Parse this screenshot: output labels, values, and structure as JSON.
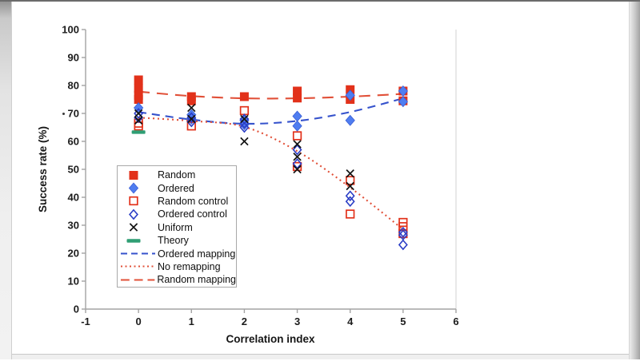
{
  "chart_data": {
    "type": "scatter",
    "title": "",
    "xlabel": "Correlation index",
    "ylabel": "Success rate (%)",
    "xlim": [
      -1,
      6
    ],
    "ylim": [
      0,
      100
    ],
    "x_ticks": [
      -1,
      0,
      1,
      2,
      3,
      4,
      5,
      6
    ],
    "y_ticks": [
      0,
      10,
      20,
      30,
      40,
      50,
      60,
      70,
      80,
      90,
      100
    ],
    "grid": false,
    "legend_position": "inside-left",
    "axis_color": "#a3a3a3",
    "right_border_color": "#d8d8d8",
    "series": [
      {
        "name": "Random",
        "slug": "random",
        "type": "scatter",
        "marker": "filled-square",
        "color": "#e2311a",
        "points": [
          [
            0,
            82
          ],
          [
            0,
            79
          ],
          [
            0,
            76.5
          ],
          [
            0,
            75
          ],
          [
            1,
            76
          ],
          [
            1,
            74.5
          ],
          [
            2,
            76
          ],
          [
            3,
            78
          ],
          [
            3,
            75.5
          ],
          [
            4,
            78.5
          ],
          [
            4,
            75
          ],
          [
            5,
            78
          ],
          [
            5,
            74.5
          ]
        ]
      },
      {
        "name": "Ordered",
        "slug": "ordered",
        "type": "scatter",
        "marker": "filled-diamond",
        "color": "#4f7df0",
        "points": [
          [
            0,
            72
          ],
          [
            1,
            69.5
          ],
          [
            1,
            68
          ],
          [
            2,
            67.5
          ],
          [
            2,
            66
          ],
          [
            3,
            69
          ],
          [
            3,
            65.5
          ],
          [
            4,
            76.5
          ],
          [
            4,
            67.5
          ],
          [
            5,
            78
          ],
          [
            5,
            74.2
          ]
        ]
      },
      {
        "name": "Random control",
        "slug": "random-control",
        "type": "scatter",
        "marker": "open-square",
        "color": "#e2311a",
        "points": [
          [
            0,
            66.5
          ],
          [
            0,
            65.5
          ],
          [
            1,
            65.5
          ],
          [
            2,
            71
          ],
          [
            3,
            62
          ],
          [
            3,
            51
          ],
          [
            4,
            46
          ],
          [
            4,
            34
          ],
          [
            5,
            31
          ],
          [
            5,
            29.5
          ],
          [
            5,
            27
          ]
        ]
      },
      {
        "name": "Ordered control",
        "slug": "ordered-control",
        "type": "scatter",
        "marker": "open-diamond",
        "color": "#2b3ec6",
        "points": [
          [
            0,
            70
          ],
          [
            0,
            68.5
          ],
          [
            1,
            68.5
          ],
          [
            1,
            67
          ],
          [
            2,
            68
          ],
          [
            2,
            66.5
          ],
          [
            2,
            65
          ],
          [
            3,
            57
          ],
          [
            3,
            52
          ],
          [
            4,
            40.5
          ],
          [
            4,
            38.5
          ],
          [
            5,
            27.5
          ],
          [
            5,
            26.5
          ],
          [
            5,
            23
          ]
        ]
      },
      {
        "name": "Uniform",
        "slug": "uniform",
        "type": "scatter",
        "marker": "x-cross",
        "color": "#141414",
        "points": [
          [
            0,
            70
          ],
          [
            0,
            67.5
          ],
          [
            1,
            72
          ],
          [
            1,
            68
          ],
          [
            2,
            68
          ],
          [
            2,
            60
          ],
          [
            3,
            59
          ],
          [
            3,
            54.5
          ],
          [
            3,
            50
          ],
          [
            4,
            48.5
          ],
          [
            4,
            44
          ]
        ]
      },
      {
        "name": "Theory",
        "slug": "theory",
        "type": "scatter",
        "marker": "dash",
        "color": "#2f9e74",
        "points": [
          [
            0,
            63.3
          ]
        ]
      },
      {
        "name": "Ordered mapping",
        "slug": "ordered-mapping",
        "type": "line",
        "style": "dashed",
        "color": "#3552cc",
        "points": [
          [
            0,
            70.5
          ],
          [
            1,
            67.8
          ],
          [
            2,
            66.3
          ],
          [
            3,
            67.3
          ],
          [
            4,
            70.5
          ],
          [
            5,
            75.4
          ]
        ]
      },
      {
        "name": "No remapping",
        "slug": "no-remapping",
        "type": "line",
        "style": "dotted",
        "color": "#e15038",
        "points": [
          [
            0,
            68.5
          ],
          [
            1,
            67.3
          ],
          [
            2,
            65.2
          ],
          [
            3,
            56.5
          ],
          [
            4,
            43.5
          ],
          [
            5,
            28.5
          ]
        ]
      },
      {
        "name": "Random mapping",
        "slug": "random-mapping",
        "type": "line",
        "style": "long-dash",
        "color": "#e15038",
        "points": [
          [
            0,
            77.8
          ],
          [
            1,
            76.2
          ],
          [
            2,
            75.4
          ],
          [
            3,
            75.4
          ],
          [
            4,
            76
          ],
          [
            5,
            77
          ]
        ]
      }
    ]
  }
}
